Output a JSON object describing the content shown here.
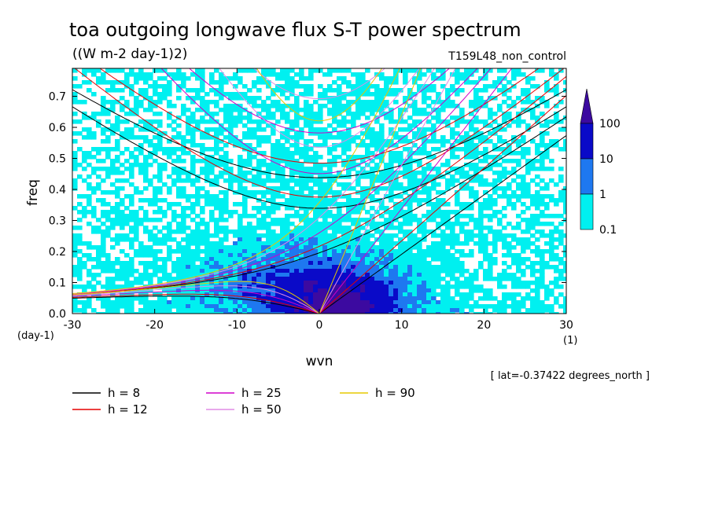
{
  "title": "toa outgoing longwave flux S-T power spectrum",
  "units": "((W m-2 day-1)2)",
  "run_name": "T159L48_non_control",
  "lat_note": "[ lat=-0.37422 degrees_north ]",
  "chart_data": {
    "type": "heatmap",
    "xlabel": "wvn",
    "ylabel": "freq",
    "x_unit_label": "(1)",
    "y_unit_label": "(day-1)",
    "xlim": [
      -30,
      30
    ],
    "ylim": [
      0,
      0.79
    ],
    "x_ticks": [
      -30,
      -20,
      -10,
      0,
      10,
      20,
      30
    ],
    "x_tick_labels": [
      "-30",
      "-20",
      "-10",
      "0",
      "10",
      "20",
      "30"
    ],
    "y_ticks": [
      0,
      0.1,
      0.2,
      0.3,
      0.4,
      0.5,
      0.6,
      0.7
    ],
    "y_tick_labels": [
      "0.0",
      "0.1",
      "0.2",
      "0.3",
      "0.4",
      "0.5",
      "0.6",
      "0.7"
    ],
    "colorbar": {
      "levels": [
        0.1,
        1,
        10,
        100
      ],
      "labels": [
        "0.1",
        "1",
        "10",
        "100"
      ],
      "colors": [
        "#00f0f0",
        "#1e78f0",
        "#0a0ac8",
        "#3c0aa0"
      ]
    },
    "dispersion_curves": [
      {
        "name": "h = 8",
        "h": 8,
        "color": "#000000"
      },
      {
        "name": "h = 12",
        "h": 12,
        "color": "#e60000"
      },
      {
        "name": "h = 25",
        "h": 25,
        "color": "#d000c8"
      },
      {
        "name": "h = 50",
        "h": 50,
        "color": "#e08ce6"
      },
      {
        "name": "h = 90",
        "h": 90,
        "color": "#e6c800"
      }
    ]
  }
}
